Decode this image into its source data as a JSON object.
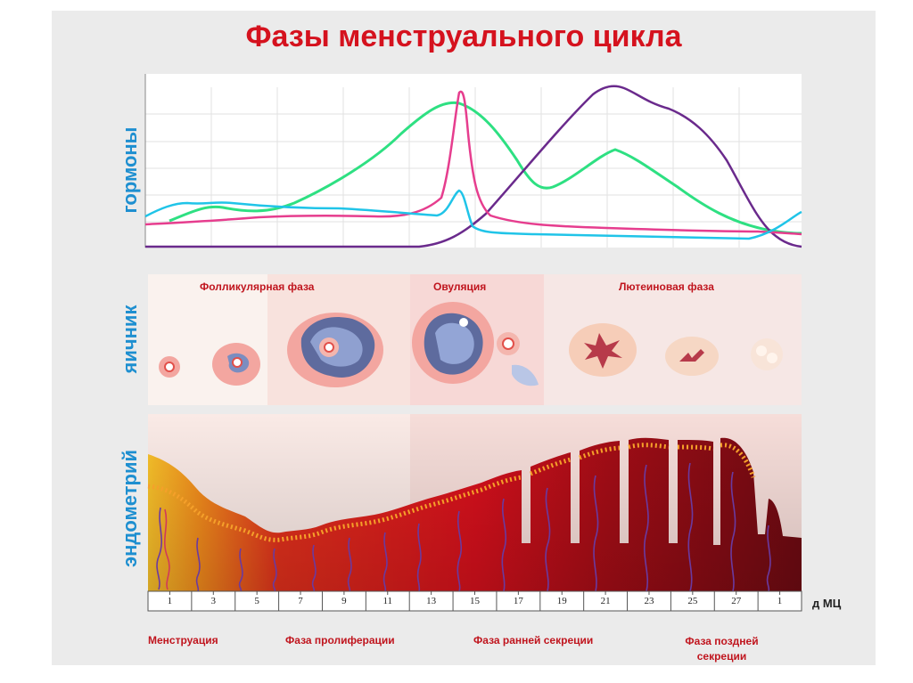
{
  "title": "Фазы менструального цикла",
  "section_labels": {
    "hormones": "гормоны",
    "ovary": "яичник",
    "endometrium": "эндометрий"
  },
  "ovary_phases": {
    "follicular": "Фолликулярная фаза",
    "ovulation": "Овуляция",
    "luteal": "Лютеиновая фаза"
  },
  "days": [
    "1",
    "3",
    "5",
    "7",
    "9",
    "11",
    "13",
    "15",
    "17",
    "19",
    "21",
    "23",
    "25",
    "27",
    "1"
  ],
  "day_axis_label": "д МЦ",
  "endometrium_phases": {
    "menstruation": "Менструация",
    "proliferation": "Фаза пролиферации",
    "early_secretion": "Фаза ранней секреции",
    "late_secretion": "Фаза поздней секреции"
  },
  "colors": {
    "title": "#d5121e",
    "side_labels": "#1e8fd0",
    "lh_curve": "#e63d8e",
    "fsh_curve": "#2ee082",
    "estrogen_curve": "#20c4e8",
    "progesterone_curve": "#6a2a8c"
  }
}
